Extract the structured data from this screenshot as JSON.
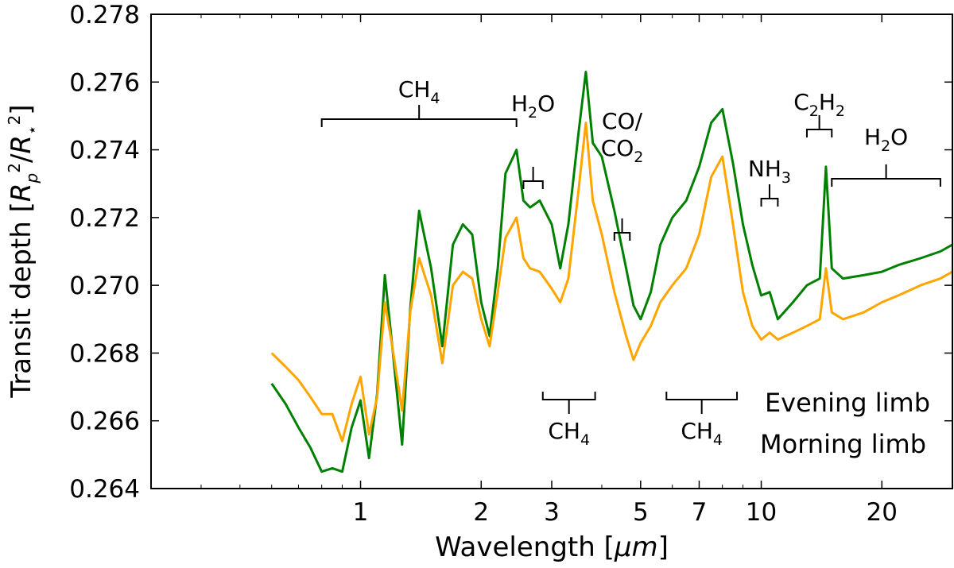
{
  "chart_data": {
    "type": "line",
    "xscale": "log",
    "xlim": [
      0.3,
      30
    ],
    "ylim": [
      0.264,
      0.278
    ],
    "grid": false,
    "xlabel": "Wavelength [μm]",
    "ylabel": "Transit depth [R_p²/R_⋆²]",
    "xticks": [
      1,
      2,
      3,
      5,
      7,
      10,
      20
    ],
    "xtick_labels": [
      "1",
      "2",
      "3",
      "5",
      "7",
      "10",
      "20"
    ],
    "yticks": [
      0.264,
      0.266,
      0.268,
      0.27,
      0.272,
      0.274,
      0.276,
      0.278
    ],
    "ytick_labels": [
      "0.264",
      "0.266",
      "0.268",
      "0.270",
      "0.272",
      "0.274",
      "0.276",
      "0.278"
    ],
    "legend": {
      "placement": "lower-right",
      "frame": false,
      "entries": [
        "Evening limb",
        "Morning limb"
      ]
    },
    "series": [
      {
        "name": "Evening limb",
        "color": "#008000",
        "points": [
          [
            0.6,
            0.2671
          ],
          [
            0.65,
            0.2665
          ],
          [
            0.7,
            0.2658
          ],
          [
            0.75,
            0.2652
          ],
          [
            0.8,
            0.2645
          ],
          [
            0.85,
            0.2646
          ],
          [
            0.9,
            0.2645
          ],
          [
            0.95,
            0.2658
          ],
          [
            1.0,
            0.2666
          ],
          [
            1.05,
            0.2649
          ],
          [
            1.1,
            0.2668
          ],
          [
            1.15,
            0.2703
          ],
          [
            1.2,
            0.2682
          ],
          [
            1.27,
            0.2653
          ],
          [
            1.33,
            0.2693
          ],
          [
            1.4,
            0.2722
          ],
          [
            1.5,
            0.2705
          ],
          [
            1.6,
            0.2682
          ],
          [
            1.7,
            0.2712
          ],
          [
            1.8,
            0.2718
          ],
          [
            1.9,
            0.2715
          ],
          [
            2.0,
            0.2695
          ],
          [
            2.1,
            0.2685
          ],
          [
            2.2,
            0.2705
          ],
          [
            2.3,
            0.2733
          ],
          [
            2.45,
            0.274
          ],
          [
            2.55,
            0.2725
          ],
          [
            2.65,
            0.2723
          ],
          [
            2.8,
            0.2725
          ],
          [
            3.0,
            0.2718
          ],
          [
            3.15,
            0.2705
          ],
          [
            3.3,
            0.2718
          ],
          [
            3.5,
            0.2745
          ],
          [
            3.65,
            0.2763
          ],
          [
            3.8,
            0.2742
          ],
          [
            4.0,
            0.2738
          ],
          [
            4.3,
            0.2722
          ],
          [
            4.6,
            0.2705
          ],
          [
            4.8,
            0.2694
          ],
          [
            5.0,
            0.269
          ],
          [
            5.3,
            0.2698
          ],
          [
            5.6,
            0.2712
          ],
          [
            6.0,
            0.272
          ],
          [
            6.5,
            0.2725
          ],
          [
            7.0,
            0.2735
          ],
          [
            7.5,
            0.2748
          ],
          [
            8.0,
            0.2752
          ],
          [
            8.5,
            0.2736
          ],
          [
            9.0,
            0.2718
          ],
          [
            9.5,
            0.2706
          ],
          [
            10.0,
            0.2697
          ],
          [
            10.5,
            0.2698
          ],
          [
            11.0,
            0.269
          ],
          [
            12.0,
            0.2695
          ],
          [
            13.0,
            0.27
          ],
          [
            14.0,
            0.2702
          ],
          [
            14.5,
            0.2735
          ],
          [
            15.0,
            0.2705
          ],
          [
            16.0,
            0.2702
          ],
          [
            18.0,
            0.2703
          ],
          [
            20.0,
            0.2704
          ],
          [
            22.0,
            0.2706
          ],
          [
            25.0,
            0.2708
          ],
          [
            28.0,
            0.271
          ],
          [
            30.0,
            0.2712
          ]
        ]
      },
      {
        "name": "Morning limb",
        "color": "#FFA500",
        "points": [
          [
            0.6,
            0.268
          ],
          [
            0.65,
            0.2676
          ],
          [
            0.7,
            0.2672
          ],
          [
            0.75,
            0.2667
          ],
          [
            0.8,
            0.2662
          ],
          [
            0.85,
            0.2662
          ],
          [
            0.9,
            0.2654
          ],
          [
            0.95,
            0.2665
          ],
          [
            1.0,
            0.2673
          ],
          [
            1.05,
            0.2656
          ],
          [
            1.1,
            0.2667
          ],
          [
            1.15,
            0.2695
          ],
          [
            1.2,
            0.2682
          ],
          [
            1.27,
            0.2663
          ],
          [
            1.33,
            0.2692
          ],
          [
            1.4,
            0.2708
          ],
          [
            1.5,
            0.2697
          ],
          [
            1.6,
            0.2677
          ],
          [
            1.7,
            0.27
          ],
          [
            1.8,
            0.2704
          ],
          [
            1.9,
            0.2702
          ],
          [
            2.0,
            0.269
          ],
          [
            2.1,
            0.2682
          ],
          [
            2.2,
            0.2698
          ],
          [
            2.3,
            0.2714
          ],
          [
            2.45,
            0.272
          ],
          [
            2.55,
            0.2708
          ],
          [
            2.65,
            0.2705
          ],
          [
            2.8,
            0.2704
          ],
          [
            3.0,
            0.2699
          ],
          [
            3.15,
            0.2695
          ],
          [
            3.3,
            0.2702
          ],
          [
            3.5,
            0.2728
          ],
          [
            3.65,
            0.2748
          ],
          [
            3.8,
            0.2725
          ],
          [
            4.0,
            0.2715
          ],
          [
            4.3,
            0.2698
          ],
          [
            4.6,
            0.2685
          ],
          [
            4.8,
            0.2678
          ],
          [
            5.0,
            0.2683
          ],
          [
            5.3,
            0.2688
          ],
          [
            5.6,
            0.2695
          ],
          [
            6.0,
            0.27
          ],
          [
            6.5,
            0.2705
          ],
          [
            7.0,
            0.2715
          ],
          [
            7.5,
            0.2732
          ],
          [
            8.0,
            0.2738
          ],
          [
            8.5,
            0.2718
          ],
          [
            9.0,
            0.2698
          ],
          [
            9.5,
            0.2688
          ],
          [
            10.0,
            0.2684
          ],
          [
            10.5,
            0.2686
          ],
          [
            11.0,
            0.2684
          ],
          [
            12.0,
            0.2686
          ],
          [
            13.0,
            0.2688
          ],
          [
            14.0,
            0.269
          ],
          [
            14.5,
            0.2705
          ],
          [
            15.0,
            0.2692
          ],
          [
            16.0,
            0.269
          ],
          [
            18.0,
            0.2692
          ],
          [
            20.0,
            0.2695
          ],
          [
            22.0,
            0.2697
          ],
          [
            25.0,
            0.27
          ],
          [
            28.0,
            0.2702
          ],
          [
            30.0,
            0.2704
          ]
        ]
      }
    ],
    "annotations": [
      {
        "species": "CH",
        "sub": "4",
        "suffix": "",
        "range": [
          0.8,
          2.45
        ]
      },
      {
        "species": "H",
        "sub": "2",
        "suffix": "O",
        "range": [
          2.55,
          2.85
        ]
      },
      {
        "species": "CO/",
        "sub": "",
        "suffix": "",
        "second_line": {
          "species": "CO",
          "sub": "2"
        },
        "range": [
          4.3,
          4.7
        ]
      },
      {
        "species": "NH",
        "sub": "3",
        "suffix": "",
        "range": [
          10.0,
          11.0
        ]
      },
      {
        "species": "C",
        "sub": "2",
        "suffix": "H",
        "sub2": "2",
        "range": [
          13.0,
          15.0
        ]
      },
      {
        "species": "H",
        "sub": "2",
        "suffix": "O",
        "range": [
          15.0,
          28.0
        ]
      },
      {
        "species": "CH",
        "sub": "4",
        "suffix": "",
        "range": [
          2.85,
          3.85
        ]
      },
      {
        "species": "CH",
        "sub": "4",
        "suffix": "",
        "range": [
          5.8,
          8.7
        ]
      }
    ]
  }
}
